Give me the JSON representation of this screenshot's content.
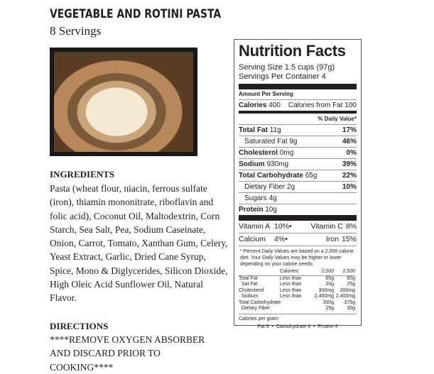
{
  "recipe": {
    "title": "VEGETABLE AND ROTINI PASTA",
    "servings": "8 Servings"
  },
  "ingredients": {
    "heading": "INGREDIENTS",
    "text": "Pasta (wheat flour, niacin, ferrous sulfate (iron), thiamin mononitrate, riboflavin and folic acid), Coconut Oil, Maltodextrin, Corn Starch, Sea Salt, Pea, Sodium Caseinate, Onion, Carrot, Tomato, Xanthan Gum, Celery, Yeast Extract, Garlic, Dried Cane Syrup, Spice, Mono & Diglycerides, Silicon Dioxide, High Oleic Acid Sunflower Oil, Natural Flavor."
  },
  "directions": {
    "heading": "DIRECTIONS",
    "text": "****REMOVE OXYGEN ABSORBER AND DISCARD PRIOR TO COOKING****"
  },
  "nutrition": {
    "title": "Nutrition Facts",
    "serving_size": "Serving Size 1.5 cups (97g)",
    "servings_per": "Servings Per Container 4",
    "amount_per": "Amount Per Serving",
    "calories_label": "Calories",
    "calories": "400",
    "cal_fat": "Calories from Fat 100",
    "dv_header": "% Daily Value*",
    "rows": [
      {
        "label": "Total Fat",
        "amount": "11g",
        "dv": "17%",
        "bold": true
      },
      {
        "label": "Saturated Fat",
        "amount": "9g",
        "dv": "46%",
        "bold": false
      },
      {
        "label": "Cholesterol",
        "amount": "0mg",
        "dv": "0%",
        "bold": true
      },
      {
        "label": "Sodium",
        "amount": "930mg",
        "dv": "39%",
        "bold": true
      },
      {
        "label": "Total Carbohydrate",
        "amount": "65g",
        "dv": "22%",
        "bold": true
      },
      {
        "label": "Dietary Fiber",
        "amount": "2g",
        "dv": "10%",
        "bold": false
      },
      {
        "label": "Sugars",
        "amount": "4g",
        "dv": "",
        "bold": false
      },
      {
        "label": "Protein",
        "amount": "10g",
        "dv": "",
        "bold": true
      }
    ],
    "vitamins": [
      [
        "Vitamin A",
        "10%",
        "Vitamin C",
        "8%"
      ],
      [
        "Calcium",
        "4%",
        "Iron",
        "15%"
      ]
    ],
    "footnote": "* Percent Daily Values are based on a 2,000 calorie diet. Your Daily Values may be higher or lower depending on your calorie needs:",
    "table": [
      [
        "",
        "Calories:",
        "2,000",
        "2,500"
      ],
      [
        "Total Fat",
        "Less than",
        "65g",
        "80g"
      ],
      [
        "  Sat Fat",
        "Less than",
        "20g",
        "25g"
      ],
      [
        "Cholesterol",
        "Less than",
        "300mg",
        "300mg"
      ],
      [
        "  Sodium",
        "Less than",
        "2,400mg",
        "2,400mg"
      ],
      [
        "Total Carbohydrate",
        "",
        "300g",
        "375g"
      ],
      [
        "  Dietary Fiber",
        "",
        "25g",
        "30g"
      ]
    ],
    "cal_per_gram": "Calories per gram:",
    "cal_per_gram_values": "Fat 9  •  Carbohydrate 4  •  Protein 4"
  }
}
